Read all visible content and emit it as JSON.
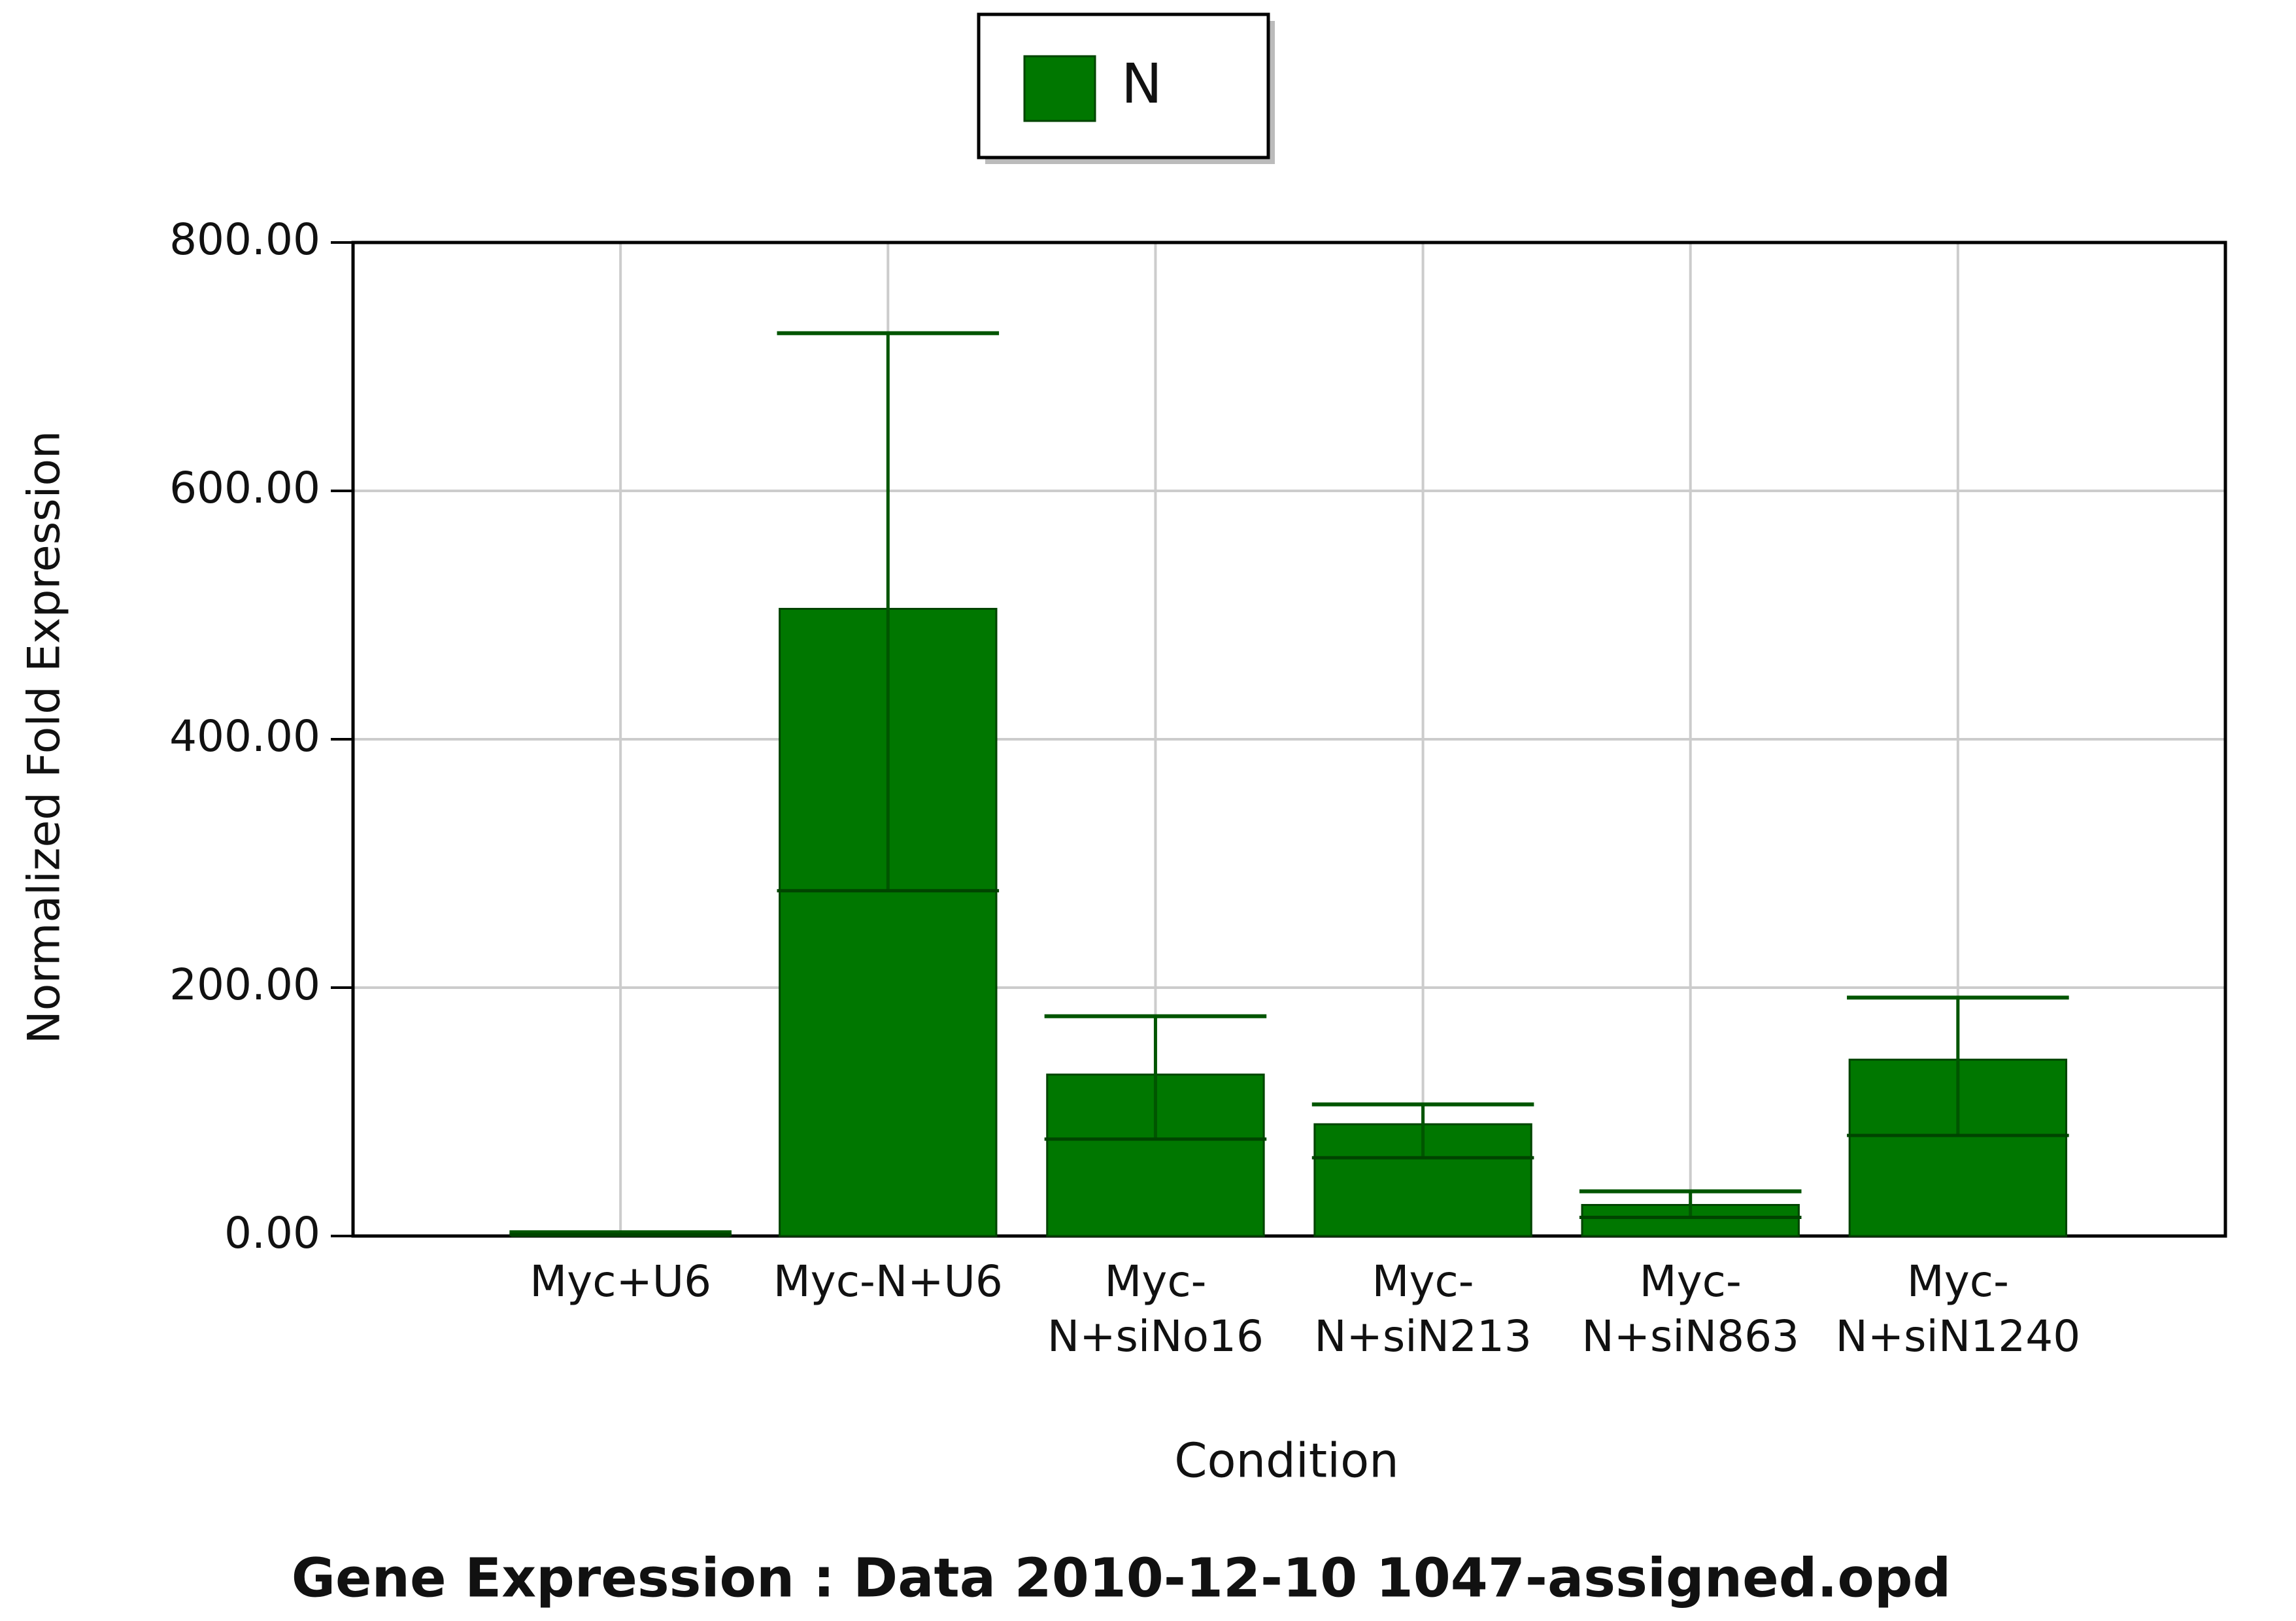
{
  "chart_data": {
    "type": "bar",
    "title": "Gene Expression : Data 2010-12-10 1047-assigned.opd",
    "x_label": "Condition",
    "y_label": "Normalized Fold Expression",
    "categories": [
      "Myc+U6",
      "Myc-N+U6",
      "Myc-N+siNo16",
      "Myc-N+siN213",
      "Myc-N+siN863",
      "Myc-N+siN1240"
    ],
    "series": [
      {
        "name": "N",
        "color": "#007700",
        "values": [
          2,
          505,
          130,
          90,
          25,
          142
        ],
        "error_plus": [
          1,
          222,
          47,
          16,
          11,
          50
        ],
        "error_minus": [
          1,
          227,
          52,
          27,
          10,
          61
        ]
      }
    ],
    "ylim": [
      0,
      800
    ],
    "yticks": [
      {
        "value": 0,
        "label": "0.00"
      },
      {
        "value": 200,
        "label": "200.00"
      },
      {
        "value": 400,
        "label": "400.00"
      },
      {
        "value": 600,
        "label": "600.00"
      },
      {
        "value": 800,
        "label": "800.00"
      }
    ],
    "grid": true,
    "legend": "top"
  }
}
